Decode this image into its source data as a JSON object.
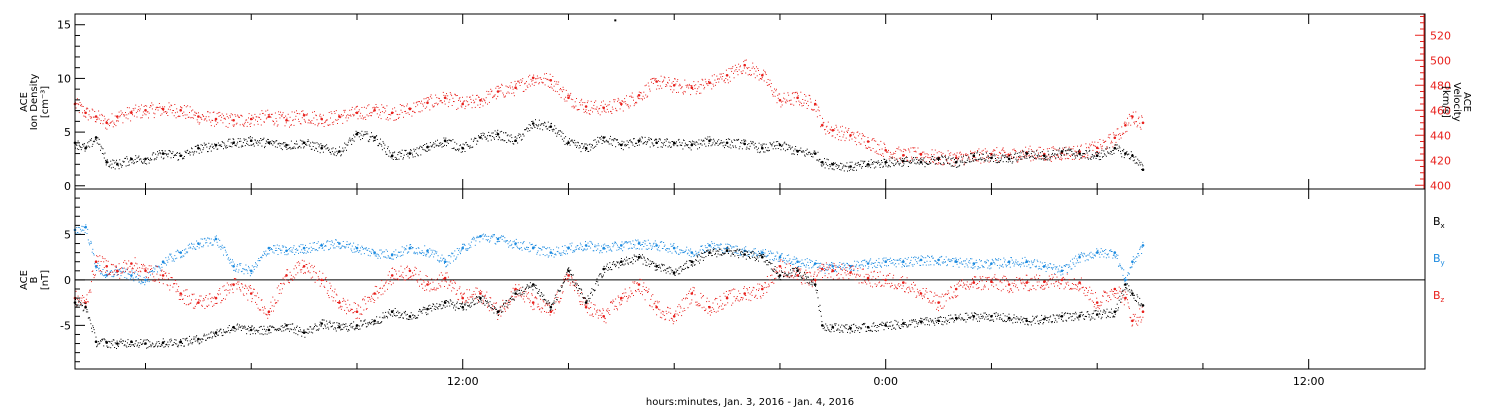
{
  "chart_data": [
    {
      "type": "scatter",
      "panel": "top",
      "xlabel": "hours:minutes, Jan.  3, 2016 - Jan.  4, 2016",
      "xtick_labels": [
        "12:00",
        "0:00",
        "12:00"
      ],
      "xtick_hours": [
        12,
        24,
        36
      ],
      "xlim_hours": [
        1.0,
        39.3
      ],
      "data_end_hour": 31.3,
      "left_axis": {
        "title": [
          "ACE",
          "Ion Density",
          "[cm⁻³]"
        ],
        "ylim": [
          -0.3,
          16
        ],
        "ticks": [
          0,
          5,
          10,
          15
        ],
        "color": "#000000"
      },
      "right_axis": {
        "title": [
          "ACE",
          "Velocity",
          "[km/s]"
        ],
        "ylim": [
          397,
          537
        ],
        "ticks": [
          400,
          420,
          440,
          460,
          480,
          500,
          520
        ],
        "color": "#e8201c"
      },
      "series": [
        {
          "name": "",
          "axis": "left",
          "color": "#000000",
          "x": [
            1.0,
            1.3,
            1.6,
            1.9,
            2.2,
            2.6,
            3.0,
            3.5,
            4.0,
            4.5,
            5.0,
            5.5,
            6.0,
            6.5,
            7.0,
            7.5,
            8.0,
            8.5,
            9.0,
            9.5,
            10.0,
            10.5,
            11.0,
            11.5,
            12.0,
            12.5,
            13.0,
            13.5,
            14.0,
            14.5,
            15.0,
            15.5,
            16.0,
            16.5,
            17.0,
            17.5,
            18.0,
            18.5,
            19.0,
            19.5,
            20.0,
            20.5,
            21.0,
            21.5,
            22.0,
            22.2,
            22.5,
            23.0,
            23.5,
            24.0,
            24.5,
            25.0,
            25.5,
            26.0,
            26.5,
            27.0,
            27.5,
            28.0,
            28.5,
            29.0,
            29.5,
            30.0,
            30.5,
            30.8,
            31.0,
            31.3
          ],
          "y": [
            4.0,
            3.5,
            4.5,
            2.2,
            2.0,
            2.5,
            2.5,
            3.0,
            2.8,
            3.5,
            3.8,
            4.0,
            4.2,
            4.0,
            3.8,
            4.0,
            3.5,
            3.2,
            4.8,
            4.5,
            2.8,
            3.0,
            3.6,
            4.2,
            3.5,
            4.5,
            4.8,
            4.2,
            5.8,
            5.5,
            4.0,
            3.5,
            4.5,
            3.8,
            4.2,
            4.0,
            4.0,
            3.8,
            4.2,
            4.0,
            3.9,
            3.5,
            3.8,
            3.2,
            3.0,
            2.2,
            2.0,
            1.8,
            2.0,
            2.2,
            2.3,
            2.2,
            2.5,
            2.2,
            2.8,
            2.6,
            2.5,
            3.0,
            2.8,
            3.2,
            3.0,
            2.8,
            3.5,
            3.0,
            2.8,
            1.5
          ]
        },
        {
          "name": "",
          "axis": "right",
          "color": "#e8201c",
          "x": [
            1.0,
            1.3,
            1.6,
            1.9,
            2.2,
            2.6,
            3.0,
            3.5,
            4.0,
            4.5,
            5.0,
            5.5,
            6.0,
            6.5,
            7.0,
            7.5,
            8.0,
            8.5,
            9.0,
            9.5,
            10.0,
            10.5,
            11.0,
            11.5,
            12.0,
            12.5,
            13.0,
            13.5,
            14.0,
            14.5,
            15.0,
            15.5,
            16.0,
            16.5,
            17.0,
            17.5,
            18.0,
            18.5,
            19.0,
            19.5,
            20.0,
            20.5,
            21.0,
            21.5,
            22.0,
            22.2,
            22.5,
            23.0,
            23.5,
            24.0,
            24.5,
            25.0,
            25.5,
            26.0,
            26.5,
            27.0,
            27.5,
            28.0,
            28.5,
            29.0,
            29.5,
            30.0,
            30.5,
            30.8,
            31.0,
            31.3
          ],
          "y": [
            465,
            458,
            455,
            450,
            455,
            458,
            460,
            461,
            460,
            455,
            453,
            452,
            453,
            455,
            452,
            456,
            453,
            455,
            458,
            460,
            458,
            461,
            466,
            470,
            465,
            468,
            475,
            478,
            486,
            484,
            470,
            463,
            462,
            465,
            472,
            483,
            480,
            478,
            482,
            488,
            496,
            488,
            468,
            470,
            465,
            448,
            444,
            440,
            435,
            428,
            424,
            425,
            422,
            422,
            423,
            425,
            424,
            426,
            425,
            426,
            427,
            430,
            438,
            448,
            455,
            450
          ]
        }
      ],
      "outliers": [
        {
          "axis": "left",
          "x": 16.3,
          "y": 15.5
        }
      ]
    },
    {
      "type": "scatter",
      "panel": "bottom",
      "xlabel": "hours:minutes, Jan.  3, 2016 - Jan.  4, 2016",
      "xlim_hours": [
        1.0,
        39.3
      ],
      "left_axis": {
        "title": [
          "ACE",
          "B",
          "[nT]"
        ],
        "ylim": [
          -9.8,
          10
        ],
        "ticks": [
          -5,
          0,
          5
        ],
        "color": "#000000"
      },
      "zero_line": true,
      "legend_position": "right",
      "series": [
        {
          "name": "Bx",
          "name_main": "B",
          "name_sub": "x",
          "color": "#000000",
          "x": [
            1.0,
            1.3,
            1.6,
            1.9,
            2.2,
            2.6,
            3.0,
            3.5,
            4.0,
            4.5,
            5.0,
            5.5,
            6.0,
            6.5,
            7.0,
            7.5,
            8.0,
            8.5,
            9.0,
            9.5,
            10.0,
            10.5,
            11.0,
            11.5,
            12.0,
            12.5,
            13.0,
            13.5,
            14.0,
            14.5,
            15.0,
            15.5,
            16.0,
            16.5,
            17.0,
            17.5,
            18.0,
            18.5,
            19.0,
            19.5,
            20.0,
            20.5,
            21.0,
            21.5,
            22.0,
            22.2,
            22.5,
            23.0,
            23.5,
            24.0,
            24.5,
            25.0,
            25.5,
            26.0,
            26.5,
            27.0,
            27.5,
            28.0,
            28.5,
            29.0,
            29.5,
            30.0,
            30.5,
            30.8,
            31.0,
            31.3
          ],
          "y": [
            -2.5,
            -3.0,
            -6.8,
            -6.9,
            -7.0,
            -6.8,
            -7.0,
            -6.9,
            -6.8,
            -6.5,
            -5.8,
            -5.2,
            -5.5,
            -5.5,
            -5.0,
            -5.8,
            -4.8,
            -5.2,
            -5.0,
            -4.5,
            -3.5,
            -4.0,
            -3.2,
            -2.5,
            -3.0,
            -2.0,
            -3.5,
            -1.5,
            -0.5,
            -3.0,
            1.0,
            -2.5,
            1.2,
            2.0,
            2.5,
            1.5,
            0.8,
            2.0,
            3.0,
            3.2,
            2.8,
            2.5,
            0.5,
            1.0,
            -0.5,
            -5.0,
            -5.2,
            -5.3,
            -5.2,
            -5.0,
            -4.8,
            -4.6,
            -4.5,
            -4.2,
            -4.0,
            -4.0,
            -4.2,
            -4.5,
            -4.3,
            -4.0,
            -4.0,
            -3.8,
            -3.5,
            -0.5,
            -1.5,
            -2.8
          ]
        },
        {
          "name": "By",
          "name_main": "B",
          "name_sub": "y",
          "color": "#1d8be0",
          "x": [
            1.0,
            1.3,
            1.6,
            1.9,
            2.2,
            2.6,
            3.0,
            3.5,
            4.0,
            4.5,
            5.0,
            5.5,
            6.0,
            6.5,
            7.0,
            7.5,
            8.0,
            8.5,
            9.0,
            9.5,
            10.0,
            10.5,
            11.0,
            11.5,
            12.0,
            12.5,
            13.0,
            13.5,
            14.0,
            14.5,
            15.0,
            15.5,
            16.0,
            16.5,
            17.0,
            17.5,
            18.0,
            18.5,
            19.0,
            19.5,
            20.0,
            20.5,
            21.0,
            21.5,
            22.0,
            22.2,
            22.5,
            23.0,
            23.5,
            24.0,
            24.5,
            25.0,
            25.5,
            26.0,
            26.5,
            27.0,
            27.5,
            28.0,
            28.5,
            29.0,
            29.5,
            30.0,
            30.5,
            30.8,
            31.0,
            31.3
          ],
          "y": [
            5.5,
            5.8,
            1.5,
            0.5,
            1.0,
            0.5,
            0.0,
            2.0,
            3.0,
            4.0,
            4.5,
            1.5,
            1.0,
            3.5,
            3.2,
            3.5,
            3.8,
            4.0,
            3.5,
            3.0,
            2.8,
            3.5,
            3.2,
            2.0,
            3.5,
            4.8,
            4.5,
            4.0,
            3.5,
            3.0,
            3.5,
            3.8,
            3.5,
            3.8,
            4.0,
            3.8,
            3.5,
            3.0,
            3.8,
            3.5,
            3.2,
            3.0,
            2.5,
            2.0,
            1.8,
            1.2,
            1.5,
            1.5,
            1.8,
            2.0,
            2.0,
            2.2,
            2.2,
            2.0,
            1.8,
            1.8,
            2.0,
            2.0,
            1.5,
            1.0,
            2.5,
            3.0,
            3.0,
            0.0,
            2.0,
            3.8
          ]
        },
        {
          "name": "Bz",
          "name_main": "B",
          "name_sub": "z",
          "color": "#e8201c",
          "x": [
            1.0,
            1.3,
            1.6,
            1.9,
            2.2,
            2.6,
            3.0,
            3.5,
            4.0,
            4.5,
            5.0,
            5.5,
            6.0,
            6.5,
            7.0,
            7.5,
            8.0,
            8.5,
            9.0,
            9.5,
            10.0,
            10.5,
            11.0,
            11.5,
            12.0,
            12.5,
            13.0,
            13.5,
            14.0,
            14.5,
            15.0,
            15.5,
            16.0,
            16.5,
            17.0,
            17.5,
            18.0,
            18.5,
            19.0,
            19.5,
            20.0,
            20.5,
            21.0,
            21.5,
            22.0,
            22.2,
            22.5,
            23.0,
            23.5,
            24.0,
            24.5,
            25.0,
            25.5,
            26.0,
            26.5,
            27.0,
            27.5,
            28.0,
            28.5,
            29.0,
            29.5,
            30.0,
            30.5,
            30.8,
            31.0,
            31.3
          ],
          "y": [
            -2.0,
            -2.5,
            2.0,
            1.5,
            1.0,
            1.8,
            1.0,
            0.5,
            -1.5,
            -2.5,
            -2.0,
            -0.5,
            -1.5,
            -3.5,
            0.5,
            1.5,
            0.0,
            -2.5,
            -3.5,
            -1.5,
            0.5,
            1.0,
            -0.5,
            0.2,
            -2.0,
            -1.5,
            -3.5,
            -1.0,
            -2.5,
            -3.5,
            0.5,
            -3.0,
            -4.0,
            -2.0,
            -0.5,
            -3.0,
            -4.0,
            -1.5,
            -3.0,
            -2.0,
            -1.5,
            -1.0,
            1.5,
            0.5,
            0.0,
            1.2,
            1.0,
            0.8,
            0.2,
            0.0,
            -0.3,
            -1.5,
            -2.5,
            -1.0,
            -0.3,
            -0.2,
            -0.5,
            -0.3,
            -0.2,
            0.0,
            -0.3,
            -2.5,
            -1.0,
            -2.0,
            -4.5,
            -3.5
          ]
        }
      ]
    }
  ]
}
